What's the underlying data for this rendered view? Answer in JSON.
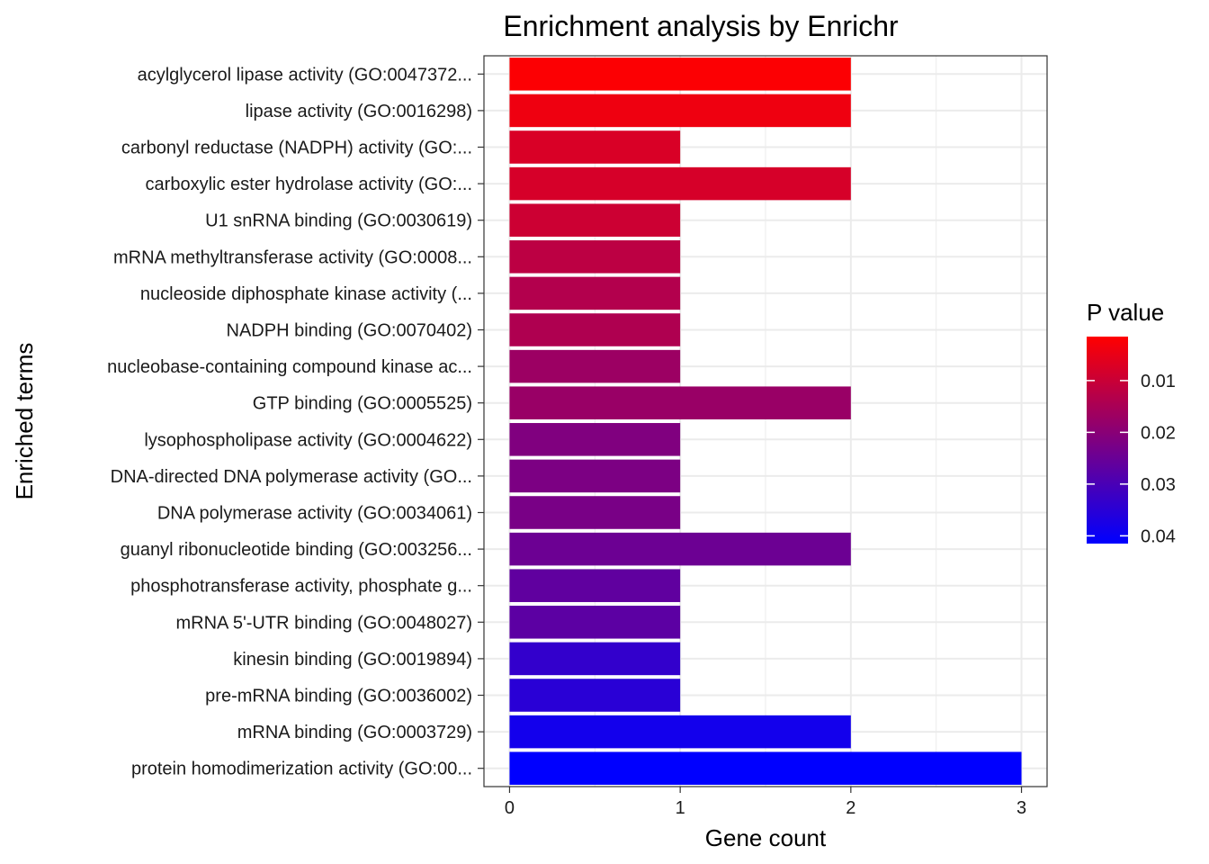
{
  "chart_data": {
    "type": "bar",
    "orientation": "horizontal",
    "title": "Enrichment analysis by Enrichr",
    "xlabel": "Gene count",
    "ylabel": "Enriched terms",
    "xlim": [
      -0.15,
      3.15
    ],
    "xticks": [
      "0",
      "1",
      "2",
      "3"
    ],
    "grid": true,
    "categories": [
      "acylglycerol lipase activity (GO:0047372...",
      "lipase activity (GO:0016298)",
      "carbonyl reductase (NADPH) activity (GO:...",
      "carboxylic ester hydrolase activity (GO:...",
      "U1 snRNA binding (GO:0030619)",
      "mRNA methyltransferase activity (GO:0008...",
      "nucleoside diphosphate kinase activity (...",
      "NADPH binding (GO:0070402)",
      "nucleobase-containing compound kinase ac...",
      "GTP binding (GO:0005525)",
      "lysophospholipase activity (GO:0004622)",
      "DNA-directed DNA polymerase activity (GO...",
      "DNA polymerase activity (GO:0034061)",
      "guanyl ribonucleotide binding (GO:003256...",
      "phosphotransferase activity, phosphate g...",
      "mRNA 5'-UTR binding (GO:0048027)",
      "kinesin binding (GO:0019894)",
      "pre-mRNA binding (GO:0036002)",
      "mRNA binding (GO:0003729)",
      "protein homodimerization activity (GO:00..."
    ],
    "values": [
      2,
      2,
      1,
      2,
      1,
      1,
      1,
      1,
      1,
      2,
      1,
      1,
      1,
      2,
      1,
      1,
      1,
      1,
      2,
      3
    ],
    "p_values": [
      0.002,
      0.004,
      0.0075,
      0.008,
      0.0095,
      0.012,
      0.0135,
      0.014,
      0.017,
      0.0175,
      0.0215,
      0.022,
      0.0225,
      0.0245,
      0.0265,
      0.027,
      0.0335,
      0.035,
      0.0385,
      0.0415
    ],
    "legend": {
      "title": "P value",
      "placement": "right",
      "min": 0.0015,
      "max": 0.0415,
      "ticks": [
        0.01,
        0.02,
        0.03,
        0.04
      ],
      "tick_labels": [
        "0.01",
        "0.02",
        "0.03",
        "0.04"
      ],
      "color_low": "#FF0000",
      "color_high": "#0000FF"
    }
  }
}
